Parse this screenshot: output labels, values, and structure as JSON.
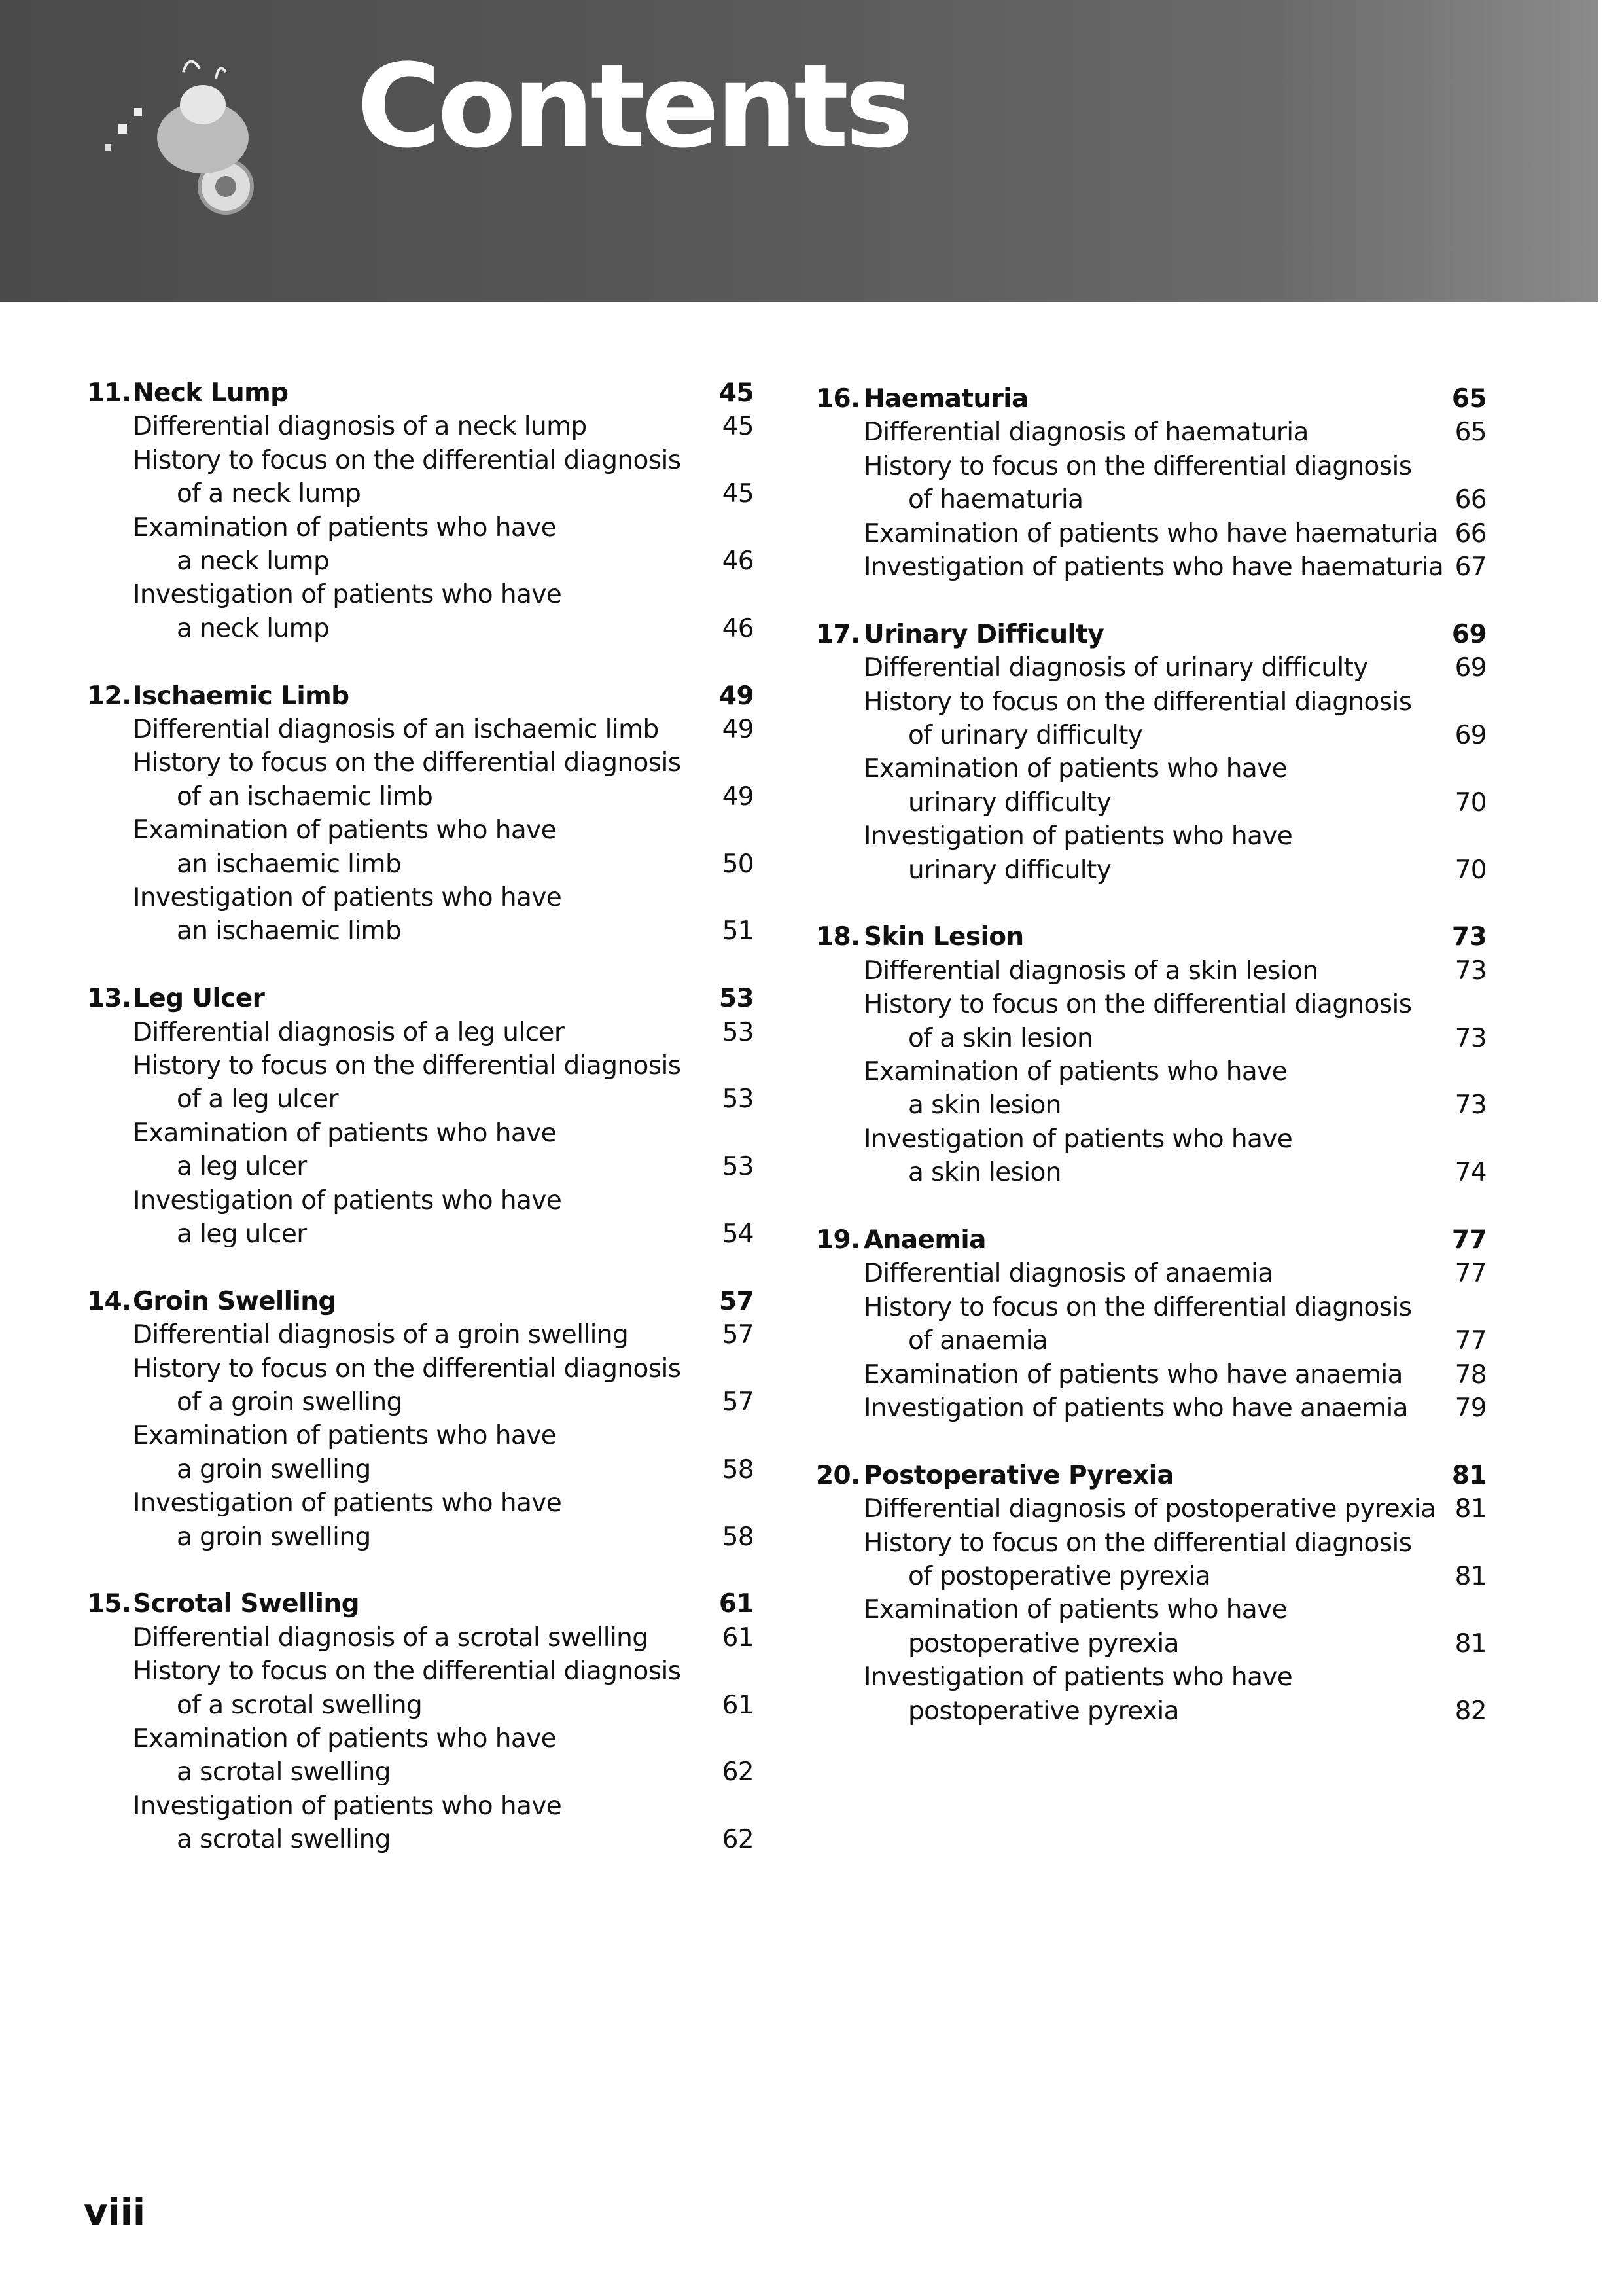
{
  "header": {
    "title": "Contents",
    "logo_icon": "motorcycle-rider-illustration"
  },
  "columns": [
    [
      {
        "number": "11.",
        "title": "Neck Lump",
        "page": "45",
        "entries": [
          {
            "lines": [
              "Differential diagnosis of a neck lump"
            ],
            "page": "45"
          },
          {
            "lines": [
              "History to focus on the differential diagnosis",
              "of a neck lump"
            ],
            "page": "45"
          },
          {
            "lines": [
              "Examination of patients who have",
              "a neck lump"
            ],
            "page": "46"
          },
          {
            "lines": [
              "Investigation of patients who have",
              "a neck lump"
            ],
            "page": "46"
          }
        ]
      },
      {
        "number": "12.",
        "title": "Ischaemic Limb",
        "page": "49",
        "entries": [
          {
            "lines": [
              "Differential diagnosis of an ischaemic limb"
            ],
            "page": "49"
          },
          {
            "lines": [
              "History to focus on the differential diagnosis",
              "of an ischaemic limb"
            ],
            "page": "49"
          },
          {
            "lines": [
              "Examination of patients who have",
              "an ischaemic limb"
            ],
            "page": "50"
          },
          {
            "lines": [
              "Investigation of patients who have",
              "an ischaemic limb"
            ],
            "page": "51"
          }
        ]
      },
      {
        "number": "13.",
        "title": "Leg Ulcer",
        "page": "53",
        "entries": [
          {
            "lines": [
              "Differential diagnosis of a leg ulcer"
            ],
            "page": "53"
          },
          {
            "lines": [
              "History to focus on the differential diagnosis",
              "of a leg ulcer"
            ],
            "page": "53"
          },
          {
            "lines": [
              "Examination of patients who have",
              "a leg ulcer"
            ],
            "page": "53"
          },
          {
            "lines": [
              "Investigation of patients who have",
              "a leg ulcer"
            ],
            "page": "54"
          }
        ]
      },
      {
        "number": "14.",
        "title": "Groin Swelling",
        "page": "57",
        "entries": [
          {
            "lines": [
              "Differential diagnosis of a groin swelling"
            ],
            "page": "57"
          },
          {
            "lines": [
              "History to focus on the differential diagnosis",
              "of a groin swelling"
            ],
            "page": "57"
          },
          {
            "lines": [
              "Examination of patients who have",
              "a groin swelling"
            ],
            "page": "58"
          },
          {
            "lines": [
              "Investigation of patients who have",
              "a groin swelling"
            ],
            "page": "58"
          }
        ]
      },
      {
        "number": "15.",
        "title": "Scrotal Swelling",
        "page": "61",
        "entries": [
          {
            "lines": [
              "Differential diagnosis of a scrotal swelling"
            ],
            "page": "61"
          },
          {
            "lines": [
              "History to focus on the differential diagnosis",
              "of a scrotal swelling"
            ],
            "page": "61"
          },
          {
            "lines": [
              "Examination of patients who have",
              "a scrotal swelling"
            ],
            "page": "62"
          },
          {
            "lines": [
              "Investigation of patients who have",
              "a scrotal swelling"
            ],
            "page": "62"
          }
        ]
      }
    ],
    [
      {
        "number": "16.",
        "title": "Haematuria",
        "page": "65",
        "entries": [
          {
            "lines": [
              "Differential diagnosis of haematuria"
            ],
            "page": "65"
          },
          {
            "lines": [
              "History to focus on the differential diagnosis",
              "of haematuria"
            ],
            "page": "66"
          },
          {
            "lines": [
              "Examination of patients who have haematuria"
            ],
            "page": "66"
          },
          {
            "lines": [
              "Investigation of patients who have haematuria"
            ],
            "page": "67"
          }
        ]
      },
      {
        "number": "17.",
        "title": "Urinary Difficulty",
        "page": "69",
        "entries": [
          {
            "lines": [
              "Differential diagnosis of urinary difficulty"
            ],
            "page": "69"
          },
          {
            "lines": [
              "History to focus on the differential diagnosis",
              "of urinary difficulty"
            ],
            "page": "69"
          },
          {
            "lines": [
              "Examination of patients who have",
              "urinary difficulty"
            ],
            "page": "70"
          },
          {
            "lines": [
              "Investigation of patients who have",
              "urinary difficulty"
            ],
            "page": "70"
          }
        ]
      },
      {
        "number": "18.",
        "title": "Skin Lesion",
        "page": "73",
        "entries": [
          {
            "lines": [
              "Differential diagnosis of a skin lesion"
            ],
            "page": "73"
          },
          {
            "lines": [
              "History to focus on the differential diagnosis",
              "of a skin lesion"
            ],
            "page": "73"
          },
          {
            "lines": [
              "Examination of patients who have",
              "a skin lesion"
            ],
            "page": "73"
          },
          {
            "lines": [
              "Investigation of patients who have",
              "a skin lesion"
            ],
            "page": "74"
          }
        ]
      },
      {
        "number": "19.",
        "title": "Anaemia",
        "page": "77",
        "entries": [
          {
            "lines": [
              "Differential diagnosis of anaemia"
            ],
            "page": "77"
          },
          {
            "lines": [
              "History to focus on the differential diagnosis",
              "of anaemia"
            ],
            "page": "77"
          },
          {
            "lines": [
              "Examination of patients who have anaemia"
            ],
            "page": "78"
          },
          {
            "lines": [
              "Investigation of patients who have anaemia"
            ],
            "page": "79"
          }
        ]
      },
      {
        "number": "20.",
        "title": "Postoperative Pyrexia",
        "page": "81",
        "entries": [
          {
            "lines": [
              "Differential diagnosis of postoperative pyrexia"
            ],
            "page": "81"
          },
          {
            "lines": [
              "History to focus on the differential diagnosis",
              "of postoperative pyrexia"
            ],
            "page": "81"
          },
          {
            "lines": [
              "Examination of patients who have",
              "postoperative pyrexia"
            ],
            "page": "81"
          },
          {
            "lines": [
              "Investigation of patients who have",
              "postoperative pyrexia"
            ],
            "page": "82"
          }
        ]
      }
    ]
  ],
  "footer": {
    "page_number": "viii"
  }
}
